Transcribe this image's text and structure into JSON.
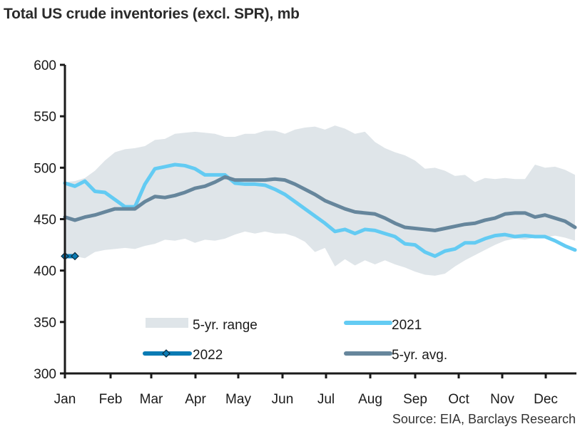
{
  "title": "Total US crude inventories (excl. SPR), mb",
  "source": "Source: EIA, Barclays Research",
  "colors": {
    "range_fill": "#dfe5e9",
    "y2021": "#63cbf3",
    "y2022": "#0a7bb4",
    "avg5": "#66869c",
    "axis": "#1a1a1a"
  },
  "chart_data": {
    "type": "line",
    "title": "Total US crude inventories (excl. SPR), mb",
    "xlabel": "",
    "ylabel": "",
    "ylim": [
      300,
      600
    ],
    "yticks": [
      300,
      350,
      400,
      450,
      500,
      550,
      600
    ],
    "ytick_labels": [
      "300",
      "350",
      "400",
      "450",
      "500",
      "550",
      "600"
    ],
    "xticks": [
      "Jan",
      "Feb",
      "Mar",
      "Apr",
      "May",
      "Jun",
      "Jul",
      "Aug",
      "Sep",
      "Oct",
      "Nov",
      "Dec"
    ],
    "x_unit": "week",
    "xlim": [
      1,
      52
    ],
    "grid": false,
    "legend_position": "bottom-inside",
    "legend": [
      "5-yr. range",
      "2021",
      "2022",
      "5-yr. avg."
    ],
    "range": {
      "name": "5-yr. range",
      "upper": [
        486,
        487,
        490,
        497,
        507,
        515,
        518,
        519,
        521,
        527,
        528,
        533,
        534,
        535,
        534,
        533,
        530,
        530,
        533,
        533,
        536,
        536,
        533,
        537,
        539,
        540,
        537,
        541,
        538,
        533,
        535,
        525,
        519,
        515,
        512,
        507,
        499,
        500,
        497,
        492,
        493,
        486,
        490,
        489,
        490,
        489,
        489,
        503,
        500,
        501,
        498,
        493
      ],
      "lower": [
        412,
        414,
        412,
        418,
        420,
        421,
        422,
        421,
        424,
        426,
        430,
        429,
        431,
        427,
        430,
        429,
        431,
        435,
        438,
        436,
        438,
        436,
        436,
        433,
        428,
        418,
        422,
        404,
        411,
        405,
        410,
        406,
        410,
        406,
        403,
        399,
        396,
        395,
        397,
        404,
        410,
        415,
        420,
        425,
        429,
        431,
        430,
        432,
        432,
        434,
        432,
        429
      ]
    },
    "series": [
      {
        "name": "2021",
        "values": [
          485,
          482,
          487,
          477,
          476,
          469,
          462,
          462,
          484,
          499,
          501,
          503,
          502,
          499,
          493,
          493,
          493,
          485,
          484,
          484,
          483,
          479,
          474,
          467,
          460,
          453,
          446,
          438,
          440,
          436,
          440,
          439,
          436,
          433,
          426,
          425,
          418,
          414,
          419,
          421,
          427,
          427,
          431,
          434,
          435,
          433,
          434,
          433,
          433,
          429,
          424,
          420
        ]
      },
      {
        "name": "2022",
        "values": [
          414,
          414
        ],
        "marker": "diamond"
      },
      {
        "name": "5-yr. avg.",
        "values": [
          452,
          449,
          452,
          454,
          457,
          460,
          460,
          460,
          467,
          472,
          471,
          473,
          476,
          480,
          482,
          486,
          491,
          488,
          488,
          488,
          488,
          489,
          488,
          484,
          479,
          474,
          468,
          464,
          460,
          457,
          456,
          455,
          451,
          446,
          442,
          441,
          440,
          439,
          441,
          443,
          445,
          446,
          449,
          451,
          455,
          456,
          456,
          452,
          454,
          451,
          448,
          442
        ]
      }
    ]
  }
}
